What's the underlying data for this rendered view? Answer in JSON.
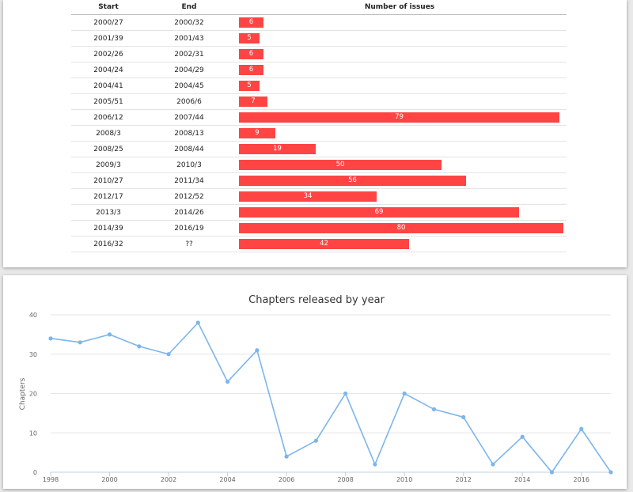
{
  "colors": {
    "bar": "#ff4444",
    "line": "#7cb5ec"
  },
  "issues_table": {
    "headers": {
      "start": "Start",
      "end": "End",
      "count": "Number of issues"
    },
    "max_value": 80,
    "rows": [
      {
        "start": "2000/27",
        "end": "2000/32",
        "count": 6
      },
      {
        "start": "2001/39",
        "end": "2001/43",
        "count": 5
      },
      {
        "start": "2002/26",
        "end": "2002/31",
        "count": 6
      },
      {
        "start": "2004/24",
        "end": "2004/29",
        "count": 6
      },
      {
        "start": "2004/41",
        "end": "2004/45",
        "count": 5
      },
      {
        "start": "2005/51",
        "end": "2006/6",
        "count": 7
      },
      {
        "start": "2006/12",
        "end": "2007/44",
        "count": 79
      },
      {
        "start": "2008/3",
        "end": "2008/13",
        "count": 9
      },
      {
        "start": "2008/25",
        "end": "2008/44",
        "count": 19
      },
      {
        "start": "2009/3",
        "end": "2010/3",
        "count": 50
      },
      {
        "start": "2010/27",
        "end": "2011/34",
        "count": 56
      },
      {
        "start": "2012/17",
        "end": "2012/52",
        "count": 34
      },
      {
        "start": "2013/3",
        "end": "2014/26",
        "count": 69
      },
      {
        "start": "2014/39",
        "end": "2016/19",
        "count": 80
      },
      {
        "start": "2016/32",
        "end": "??",
        "count": 42
      }
    ]
  },
  "chart_data": {
    "type": "line",
    "title": "Chapters released by year",
    "xlabel": "",
    "ylabel": "Chapters",
    "x": [
      1998,
      1999,
      2000,
      2001,
      2002,
      2003,
      2004,
      2005,
      2006,
      2007,
      2008,
      2009,
      2010,
      2011,
      2012,
      2013,
      2014,
      2015,
      2016,
      2017
    ],
    "values": [
      34,
      33,
      35,
      32,
      30,
      38,
      23,
      31,
      4,
      8,
      20,
      2,
      20,
      16,
      14,
      2,
      9,
      0,
      11,
      0
    ],
    "xticks": [
      "1998",
      "2000",
      "2002",
      "2004",
      "2006",
      "2008",
      "2010",
      "2012",
      "2014",
      "2016"
    ],
    "yticks": [
      "0",
      "10",
      "20",
      "30",
      "40"
    ],
    "xlim": [
      1998,
      2017
    ],
    "ylim": [
      0,
      40
    ],
    "grid": true
  }
}
